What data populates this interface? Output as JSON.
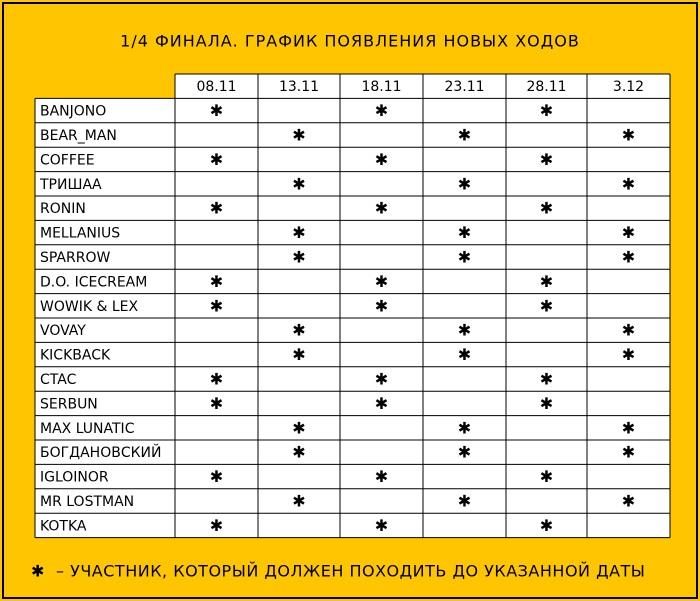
{
  "header": {
    "title": "1/4 ФИНАЛА. ГРАФИК ПОЯВЛЕНИЯ НОВЫХ ХОДОВ"
  },
  "table": {
    "columns": [
      "08.11",
      "13.11",
      "18.11",
      "23.11",
      "28.11",
      "3.12"
    ],
    "rows": [
      {
        "name": "BANJONO",
        "cells": [
          "✱",
          null,
          "✱",
          null,
          "✱",
          null
        ]
      },
      {
        "name": "BEAR_MAN",
        "cells": [
          null,
          "✱",
          null,
          "✱",
          null,
          "✱"
        ]
      },
      {
        "name": "COFFEE",
        "cells": [
          "✱",
          null,
          "✱",
          null,
          "✱",
          null
        ]
      },
      {
        "name": "ТРИШАА",
        "cells": [
          null,
          "✱",
          null,
          "✱",
          null,
          "✱"
        ]
      },
      {
        "name": "RONIN",
        "cells": [
          "✱",
          null,
          "✱",
          null,
          "✱",
          null
        ]
      },
      {
        "name": "MELLANIUS",
        "cells": [
          null,
          "✱",
          null,
          "✱",
          null,
          "✱"
        ]
      },
      {
        "name": "SPARROW",
        "cells": [
          null,
          "✱",
          null,
          "✱",
          null,
          "✱"
        ]
      },
      {
        "name": "D.O. ICECREAM",
        "cells": [
          "✱",
          null,
          "✱",
          null,
          "✱",
          null
        ]
      },
      {
        "name": "WOWIK & LEX",
        "cells": [
          "✱",
          null,
          "✱",
          null,
          "✱",
          null
        ]
      },
      {
        "name": "VOVAY",
        "cells": [
          null,
          "✱",
          null,
          "✱",
          null,
          "✱"
        ]
      },
      {
        "name": "KICKBACK",
        "cells": [
          null,
          "✱",
          null,
          "✱",
          null,
          "✱"
        ]
      },
      {
        "name": "CTAC",
        "cells": [
          "✱",
          null,
          "✱",
          null,
          "✱",
          null
        ]
      },
      {
        "name": "SERBUN",
        "cells": [
          "✱",
          null,
          "✱",
          null,
          "✱",
          null
        ]
      },
      {
        "name": "MAX LUNATIC",
        "cells": [
          null,
          "✱",
          null,
          "✱",
          null,
          "✱"
        ]
      },
      {
        "name": "БОГДАНОВСКИЙ",
        "cells": [
          null,
          "✱",
          null,
          "✱",
          null,
          "✱"
        ]
      },
      {
        "name": "IGLOINOR",
        "cells": [
          "✱",
          null,
          "✱",
          null,
          "✱",
          null
        ]
      },
      {
        "name": "MR LOSTMAN",
        "cells": [
          null,
          "✱",
          null,
          "✱",
          null,
          "✱"
        ]
      },
      {
        "name": "KOTKA",
        "cells": [
          "✱",
          null,
          "✱",
          null,
          "✱",
          null
        ]
      }
    ]
  },
  "legend": {
    "symbol": "✱",
    "text": "– УЧАСТНИК, КОТОРЫЙ ДОЛЖЕН ПОХОДИТЬ ДО УКАЗАННОЙ ДАТЫ"
  }
}
